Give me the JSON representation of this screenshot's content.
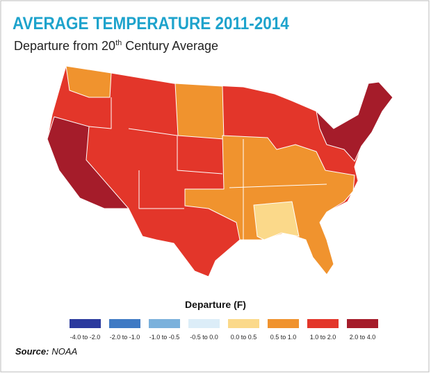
{
  "header": {
    "title": "AVERAGE TEMPERATURE 2011-2014",
    "subtitle": {
      "text": "Departure from 20",
      "superscript": "th",
      "rest": " Century Average"
    }
  },
  "legend": {
    "title": "Departure (F)",
    "items": [
      {
        "label": "-4.0 to -2.0",
        "color": "#2b3a9e"
      },
      {
        "label": "-2.0 to -1.0",
        "color": "#3f7ac4"
      },
      {
        "label": "-1.0 to -0.5",
        "color": "#7bb1dc"
      },
      {
        "label": "-0.5 to 0.0",
        "color": "#dcedf8"
      },
      {
        "label": "0.0 to 0.5",
        "color": "#fbd98a"
      },
      {
        "label": "0.5 to 1.0",
        "color": "#f0932e"
      },
      {
        "label": "1.0 to 2.0",
        "color": "#e3362a"
      },
      {
        "label": "2.0 to 4.0",
        "color": "#a51c2a"
      }
    ]
  },
  "source": {
    "label": "Source:",
    "text": "NOAA"
  }
}
